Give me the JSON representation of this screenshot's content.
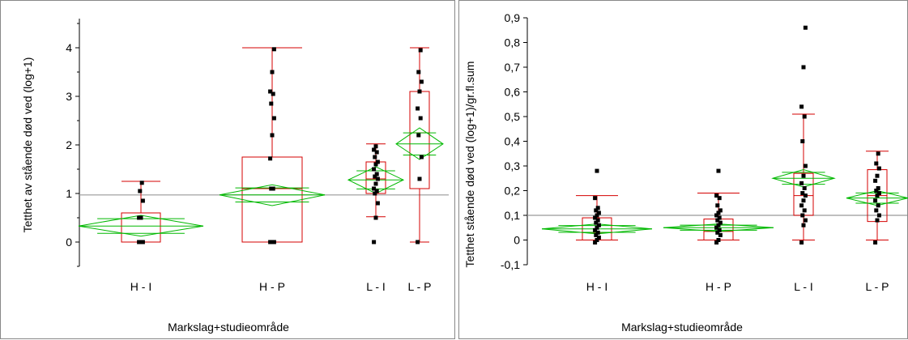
{
  "colors": {
    "box": "#d40000",
    "diamond": "#00b800",
    "point": "#000000",
    "refline": "#999999",
    "axis": "#000000"
  },
  "chart_data": [
    {
      "type": "box",
      "xlabel": "Markslag+studieområde",
      "ylabel": "Tetthet av stående død ved (log+1)",
      "ylim": [
        -0.5,
        4.6
      ],
      "yticks": [
        0,
        1,
        2,
        3,
        4
      ],
      "yticklabels": [
        "0",
        "1",
        "2",
        "3",
        "4"
      ],
      "grand_mean": 0.97,
      "categories": [
        "H - I",
        "H - P",
        "L - I",
        "L - P"
      ],
      "groups": [
        {
          "name": "H - I",
          "whisker_low": 0,
          "q1": 0,
          "median": 0,
          "q3": 0.6,
          "whisker_high": 1.25,
          "mean": 0.33,
          "ci_low": 0.12,
          "ci_high": 0.55,
          "points": [
            0,
            0,
            0,
            0,
            0,
            0.5,
            0.5,
            0.85,
            1.05,
            1.22
          ]
        },
        {
          "name": "H - P",
          "whisker_low": 0,
          "q1": 0,
          "median": 1.1,
          "q3": 1.75,
          "whisker_high": 4.0,
          "mean": 0.97,
          "ci_low": 0.75,
          "ci_high": 1.18,
          "points": [
            0,
            0,
            0,
            1.1,
            1.1,
            1.72,
            2.2,
            2.55,
            2.85,
            3.05,
            3.1,
            3.5,
            3.97
          ]
        },
        {
          "name": "L - I",
          "whisker_low": 0.52,
          "q1": 1.0,
          "median": 1.3,
          "q3": 1.65,
          "whisker_high": 2.02,
          "mean": 1.28,
          "ci_low": 1.0,
          "ci_high": 1.55,
          "points": [
            0,
            0.5,
            0.8,
            1.0,
            1.05,
            1.1,
            1.2,
            1.3,
            1.35,
            1.4,
            1.5,
            1.6,
            1.65,
            1.75,
            1.85,
            1.9,
            1.97
          ]
        },
        {
          "name": "L - P",
          "whisker_low": 0,
          "q1": 1.1,
          "median": 2.25,
          "q3": 3.1,
          "whisker_high": 4.0,
          "mean": 2.02,
          "ci_low": 1.7,
          "ci_high": 2.35,
          "points": [
            0,
            1.3,
            1.75,
            2.2,
            2.55,
            2.75,
            3.1,
            3.3,
            3.5,
            3.95
          ]
        }
      ]
    },
    {
      "type": "box",
      "xlabel": "Markslag+studieområde",
      "ylabel": "Tetthet stående død ved (log+1)/gr.fl.sum",
      "ylim": [
        -0.1,
        0.9
      ],
      "yticks": [
        -0.1,
        0,
        0.1,
        0.2,
        0.3,
        0.4,
        0.5,
        0.6,
        0.7,
        0.8,
        0.9
      ],
      "yticklabels": [
        "-0,1",
        "0",
        "0,1",
        "0,2",
        "0,3",
        "0,4",
        "0,5",
        "0,6",
        "0,7",
        "0,8",
        "0,9"
      ],
      "grand_mean": 0.1,
      "categories": [
        "H - I",
        "H - P",
        "L - I",
        "L - P"
      ],
      "groups": [
        {
          "name": "H - I",
          "whisker_low": 0,
          "q1": 0,
          "median": 0.03,
          "q3": 0.09,
          "whisker_high": 0.18,
          "mean": 0.045,
          "ci_low": 0.025,
          "ci_high": 0.065,
          "points": [
            -0.01,
            0,
            0.01,
            0.02,
            0.03,
            0.04,
            0.05,
            0.06,
            0.07,
            0.08,
            0.09,
            0.1,
            0.11,
            0.12,
            0.13,
            0.17,
            0.28
          ]
        },
        {
          "name": "H - P",
          "whisker_low": 0,
          "q1": 0,
          "median": 0.035,
          "q3": 0.085,
          "whisker_high": 0.19,
          "mean": 0.05,
          "ci_low": 0.035,
          "ci_high": 0.065,
          "points": [
            -0.01,
            0,
            0.02,
            0.03,
            0.04,
            0.05,
            0.06,
            0.07,
            0.08,
            0.09,
            0.1,
            0.11,
            0.12,
            0.14,
            0.17,
            0.18,
            0.28
          ]
        },
        {
          "name": "L - I",
          "whisker_low": 0,
          "q1": 0.1,
          "median": 0.18,
          "q3": 0.27,
          "whisker_high": 0.51,
          "mean": 0.25,
          "ci_low": 0.215,
          "ci_high": 0.285,
          "points": [
            -0.01,
            0.06,
            0.08,
            0.1,
            0.12,
            0.14,
            0.16,
            0.18,
            0.19,
            0.21,
            0.23,
            0.26,
            0.3,
            0.4,
            0.5,
            0.54,
            0.7,
            0.86
          ]
        },
        {
          "name": "L - P",
          "whisker_low": 0,
          "q1": 0.075,
          "median": 0.18,
          "q3": 0.285,
          "whisker_high": 0.36,
          "mean": 0.17,
          "ci_low": 0.14,
          "ci_high": 0.2,
          "points": [
            -0.01,
            0.08,
            0.1,
            0.12,
            0.14,
            0.16,
            0.18,
            0.19,
            0.2,
            0.21,
            0.24,
            0.26,
            0.29,
            0.31,
            0.35
          ]
        }
      ]
    }
  ]
}
